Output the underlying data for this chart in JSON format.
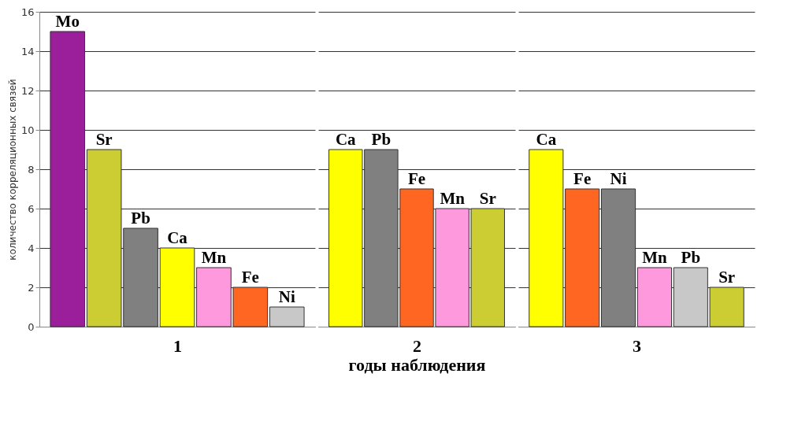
{
  "chart_data": [
    {
      "type": "bar",
      "xlabel": "1",
      "ylabel": "количество корреляционных связей",
      "categories": [
        "Mo",
        "Sr",
        "Pb",
        "Ca",
        "Mn",
        "Fe",
        "Ni"
      ],
      "values": [
        15,
        9,
        5,
        4,
        3,
        2,
        1
      ],
      "colors": [
        "#9b1f9b",
        "#cccc33",
        "#808080",
        "#ffff00",
        "#ff99dd",
        "#ff6622",
        "#c8c8c8"
      ],
      "ylim": [
        0,
        16
      ],
      "yticks": [
        0,
        2,
        4,
        6,
        8,
        10,
        12,
        14,
        16
      ],
      "grid": "y"
    },
    {
      "type": "bar",
      "xlabel": "2",
      "annotations": [
        "годы наблюдения"
      ],
      "categories": [
        "Ca",
        "Pb",
        "Fe",
        "Mn",
        "Sr"
      ],
      "values": [
        9,
        9,
        7,
        6,
        6
      ],
      "colors": [
        "#ffff00",
        "#808080",
        "#ff6622",
        "#ff99dd",
        "#cccc33"
      ],
      "ylim": [
        0,
        16
      ],
      "yticks": [
        0,
        2,
        4,
        6,
        8,
        10,
        12,
        14,
        16
      ],
      "grid": "y",
      "tick_labels": "x"
    },
    {
      "type": "bar",
      "xlabel": "3",
      "categories": [
        "Ca",
        "Fe",
        "Ni",
        "Mn",
        "Pb",
        "Sr"
      ],
      "values": [
        9,
        7,
        7,
        3,
        3,
        2
      ],
      "colors": [
        "#ffff00",
        "#ff6622",
        "#808080",
        "#ff99dd",
        "#c8c8c8",
        "#cccc33"
      ],
      "ylim": [
        0,
        16
      ],
      "yticks": [
        0,
        2,
        4,
        6,
        8,
        10,
        12,
        14,
        16
      ],
      "grid": "y",
      "tick_labels": "x"
    }
  ]
}
